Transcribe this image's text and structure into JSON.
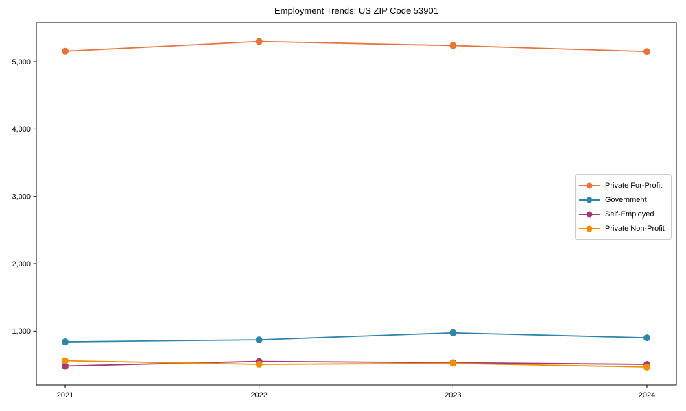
{
  "title": "Employment Trends: US ZIP Code 53901",
  "chart_data": {
    "type": "line",
    "title": "Employment Trends: US ZIP Code 53901",
    "xlabel": "",
    "ylabel": "",
    "x": [
      2021,
      2022,
      2023,
      2024
    ],
    "xtick_labels": [
      "2021",
      "2022",
      "2023",
      "2024"
    ],
    "yticks": [
      1000,
      2000,
      3000,
      4000,
      5000
    ],
    "ytick_labels": [
      "1,000",
      "2,000",
      "3,000",
      "4,000",
      "5,000"
    ],
    "ylim": [
      200,
      5580
    ],
    "grid": false,
    "legend_position": "center right",
    "series": [
      {
        "name": "Private For-Profit",
        "color": "#E8743B",
        "values": [
          5155,
          5300,
          5240,
          5150
        ]
      },
      {
        "name": "Government",
        "color": "#2E86AB",
        "values": [
          840,
          870,
          975,
          900
        ]
      },
      {
        "name": "Self-Employed",
        "color": "#A23B72",
        "values": [
          480,
          550,
          530,
          505
        ]
      },
      {
        "name": "Private Non-Profit",
        "color": "#F18F01",
        "values": [
          560,
          505,
          520,
          465
        ]
      }
    ]
  }
}
